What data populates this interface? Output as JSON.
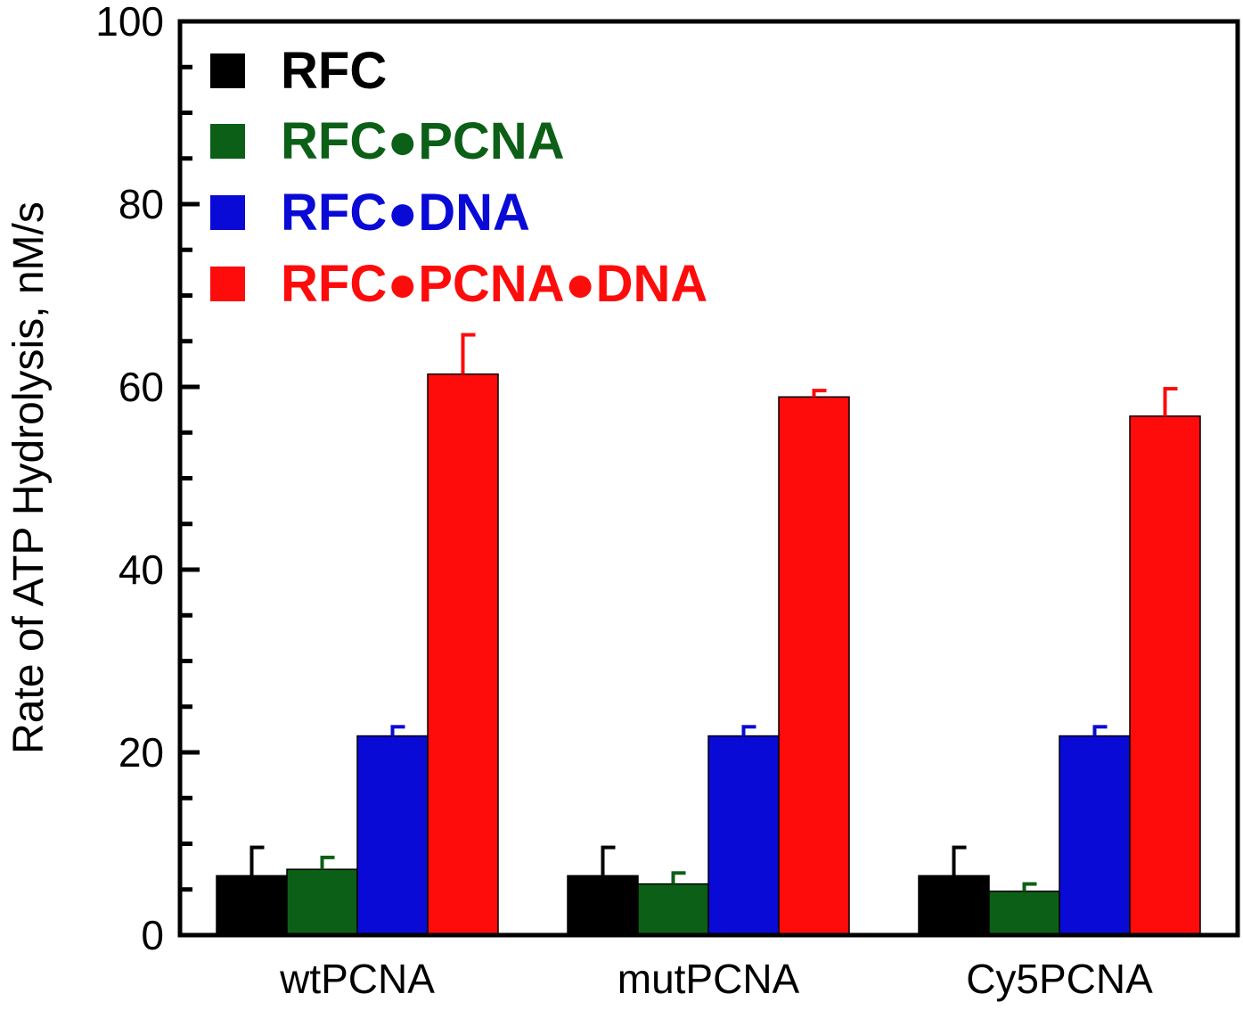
{
  "chart_data": {
    "type": "bar",
    "ylabel": "Rate of ATP Hydrolysis, nM/s",
    "xlabel": "",
    "ylim": [
      0,
      100
    ],
    "y_ticks": [
      "0",
      "20",
      "40",
      "60",
      "80",
      "100"
    ],
    "y_major_step": 20,
    "y_minor_step": 5,
    "grid": false,
    "legend_position": "top-left",
    "categories": [
      "wtPCNA",
      "mutPCNA",
      "Cy5PCNA"
    ],
    "series": [
      {
        "name": "RFC",
        "color": "#000000",
        "values": [
          6.5,
          6.5,
          6.5
        ],
        "errors": [
          3.1,
          3.1,
          3.1
        ]
      },
      {
        "name": "RFC●PCNA",
        "color": "#0c5f16",
        "values": [
          7.2,
          5.6,
          4.8
        ],
        "errors": [
          1.3,
          1.2,
          0.8
        ]
      },
      {
        "name": "RFC●DNA",
        "color": "#0a0ad6",
        "values": [
          21.8,
          21.8,
          21.8
        ],
        "errors": [
          1.0,
          1.0,
          1.0
        ]
      },
      {
        "name": "RFC●PCNA●DNA",
        "color": "#fe0b0b",
        "values": [
          61.4,
          58.9,
          56.8
        ],
        "errors": [
          4.3,
          0.7,
          3.0
        ]
      }
    ]
  }
}
